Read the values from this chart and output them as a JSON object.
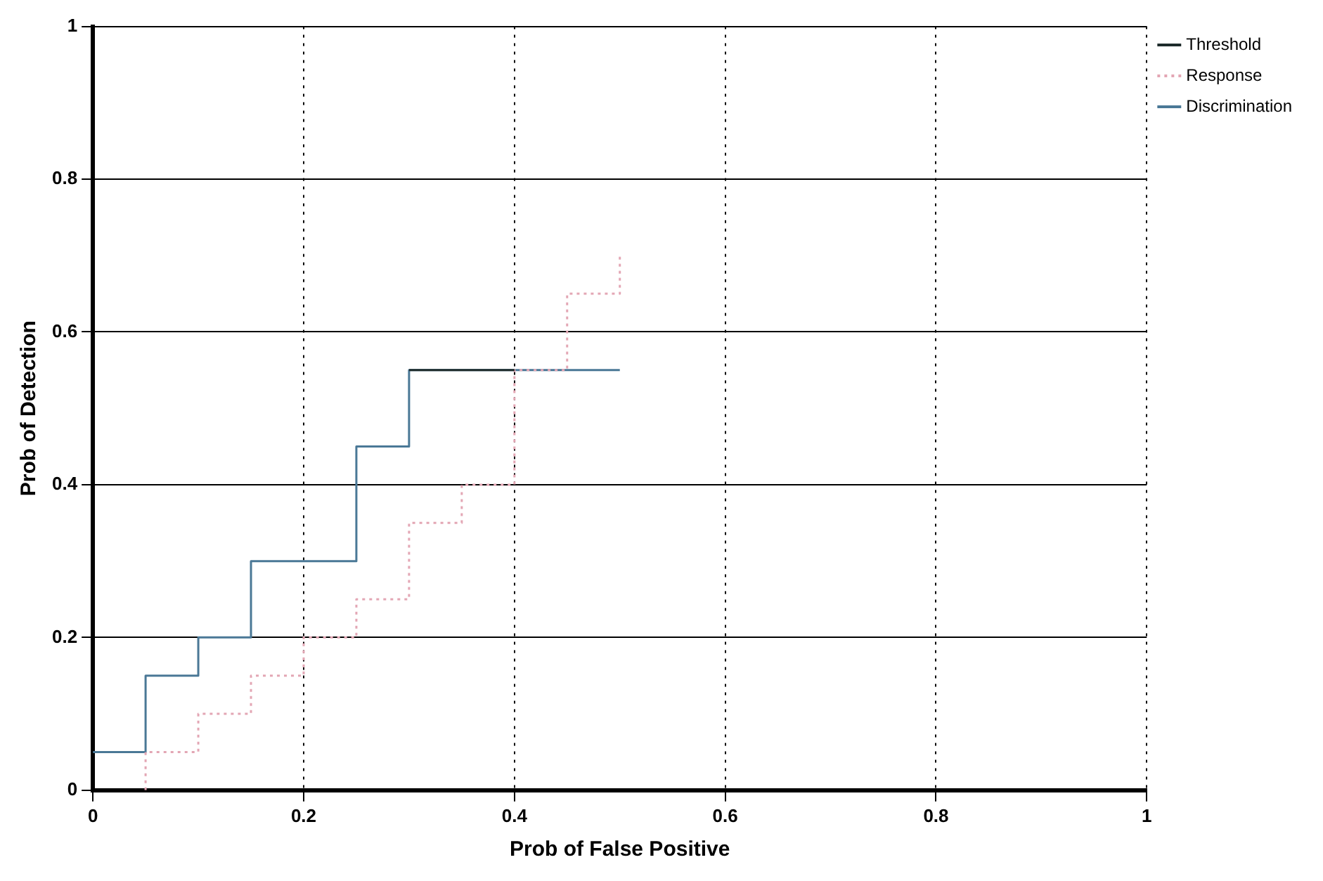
{
  "chart_data": {
    "type": "step",
    "xlabel": "Prob of False Positive",
    "ylabel": "Prob of Detection",
    "xlim": [
      0,
      1
    ],
    "ylim": [
      0,
      1
    ],
    "xticks": [
      0,
      0.2,
      0.4,
      0.6,
      0.8,
      1
    ],
    "yticks": [
      0,
      0.2,
      0.4,
      0.6,
      0.8,
      1
    ],
    "grid": true,
    "legend": "top right",
    "marker": "none",
    "series": [
      {
        "name": "Threshold",
        "color": "#1e2b2b",
        "line_style": "solid",
        "x": [
          0.3,
          0.4
        ],
        "values": [
          0.55,
          0.55
        ]
      },
      {
        "name": "Response",
        "color": "#e3a6b4",
        "line_style": "dotted",
        "x": [
          0.05,
          0.05,
          0.1,
          0.15,
          0.2,
          0.25,
          0.3,
          0.35,
          0.4,
          0.45,
          0.5
        ],
        "values": [
          0,
          0.05,
          0.1,
          0.15,
          0.2,
          0.25,
          0.35,
          0.4,
          0.55,
          0.65,
          0.7
        ]
      },
      {
        "name": "Discrimination",
        "color": "#4a7896",
        "line_style": "solid",
        "x": [
          0,
          0.05,
          0.1,
          0.15,
          0.25,
          0.3,
          0.5
        ],
        "values": [
          0.05,
          0.15,
          0.2,
          0.3,
          0.45,
          0.55,
          0.55
        ]
      }
    ]
  }
}
